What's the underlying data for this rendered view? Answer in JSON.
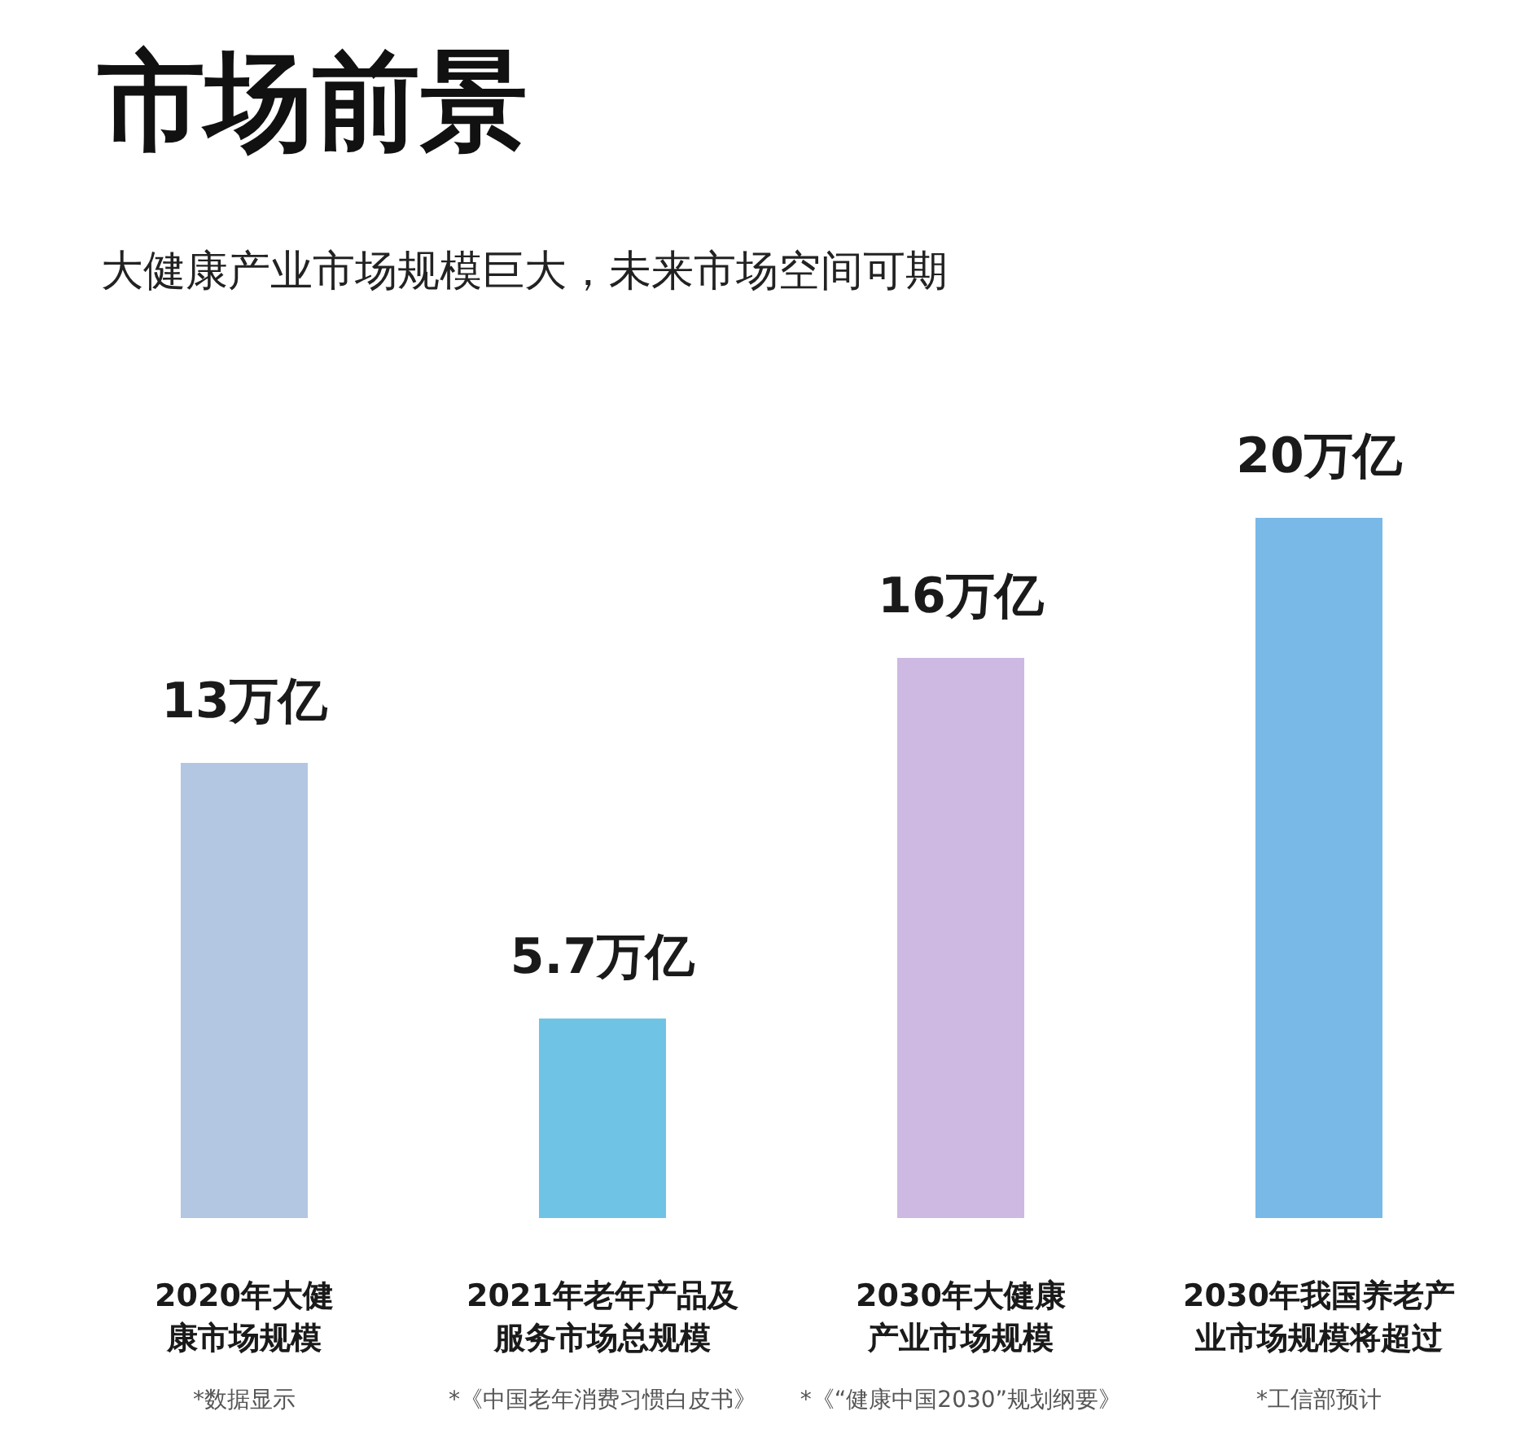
{
  "chart_data": {
    "type": "bar",
    "title": "市场前景",
    "subtitle": "大健康产业市场规模巨大，未来市场空间可期",
    "categories": [
      "2020年大健康市场规模",
      "2021年老年产品及服务市场总规模",
      "2030年大健康产业市场规模",
      "2030年我国养老产业市场规模将超过"
    ],
    "values": [
      13,
      5.7,
      16,
      20
    ],
    "value_labels": [
      "13万亿",
      "5.7万亿",
      "16万亿",
      "20万亿"
    ],
    "colors": [
      "#b3c7e2",
      "#6fc4e6",
      "#cdb9e2",
      "#79b9e8"
    ],
    "annotations": [
      "*数据显示",
      "*《中国老年消费习惯白皮书》",
      "*《“健康中国2030”规划纲要》",
      "*工信部预计"
    ]
  }
}
